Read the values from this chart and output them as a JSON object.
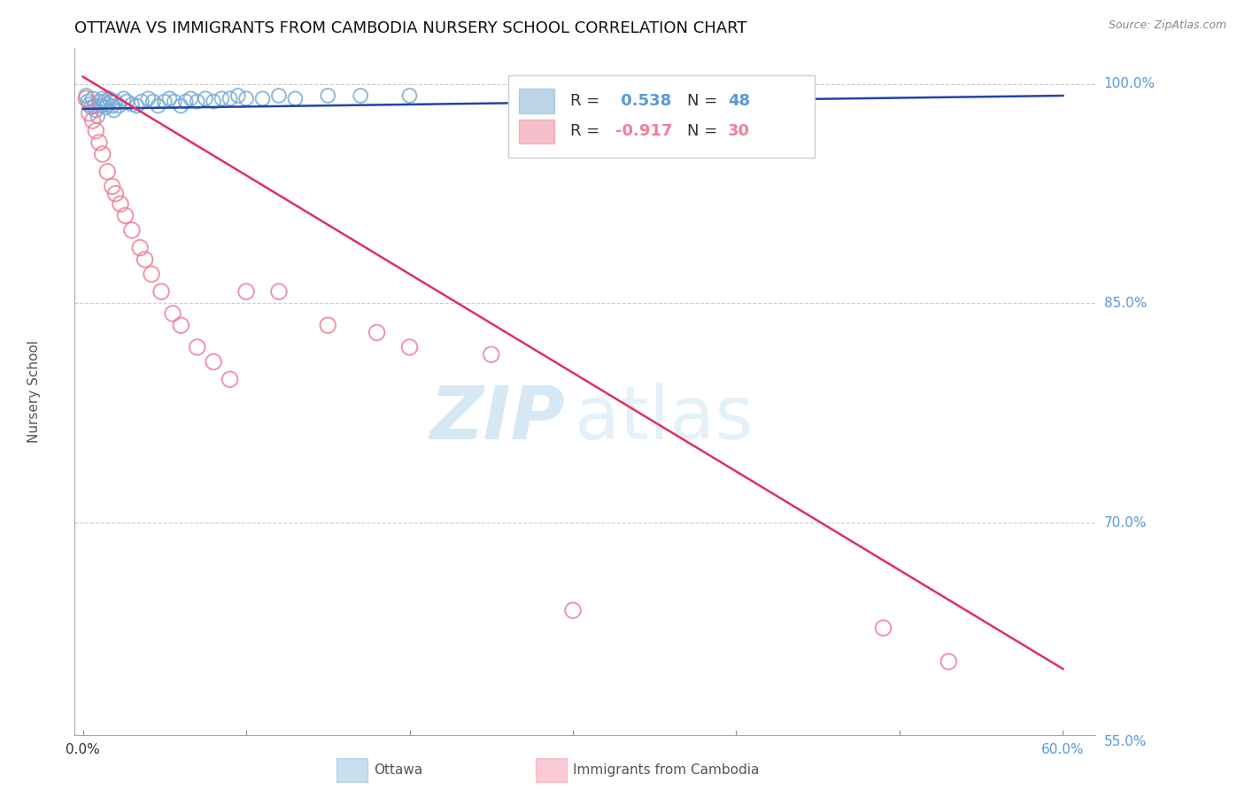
{
  "title": "OTTAWA VS IMMIGRANTS FROM CAMBODIA NURSERY SCHOOL CORRELATION CHART",
  "source": "Source: ZipAtlas.com",
  "ylabel": "Nursery School",
  "xlim": [
    -0.005,
    0.62
  ],
  "ylim": [
    0.555,
    1.025
  ],
  "yticks": [
    0.55,
    0.7,
    0.85,
    1.0
  ],
  "ytick_labels": [
    "55.0%",
    "70.0%",
    "85.0%",
    "100.0%"
  ],
  "ottawa_color": "#7aadd4",
  "cambodia_color": "#f08098",
  "trendline_ottawa_color": "#2244aa",
  "trendline_cambodia_color": "#e03060",
  "R_ottawa": 0.538,
  "N_ottawa": 48,
  "R_cambodia": -0.917,
  "N_cambodia": 30,
  "watermark_zip": "ZIP",
  "watermark_atlas": "atlas",
  "background_color": "#ffffff",
  "grid_color": "#cccccc",
  "title_fontsize": 13,
  "right_label_color": "#5599dd",
  "ottawa_x": [
    0.002,
    0.003,
    0.004,
    0.005,
    0.006,
    0.007,
    0.008,
    0.009,
    0.01,
    0.011,
    0.012,
    0.013,
    0.014,
    0.015,
    0.016,
    0.017,
    0.018,
    0.019,
    0.02,
    0.022,
    0.025,
    0.027,
    0.03,
    0.033,
    0.036,
    0.04,
    0.043,
    0.046,
    0.05,
    0.053,
    0.056,
    0.06,
    0.063,
    0.066,
    0.07,
    0.075,
    0.08,
    0.085,
    0.09,
    0.095,
    0.1,
    0.11,
    0.12,
    0.13,
    0.15,
    0.17,
    0.2,
    0.36
  ],
  "ottawa_y": [
    0.992,
    0.988,
    0.986,
    0.984,
    0.99,
    0.985,
    0.982,
    0.978,
    0.988,
    0.985,
    0.99,
    0.988,
    0.984,
    0.986,
    0.99,
    0.988,
    0.985,
    0.982,
    0.988,
    0.985,
    0.99,
    0.988,
    0.986,
    0.985,
    0.988,
    0.99,
    0.988,
    0.985,
    0.988,
    0.99,
    0.988,
    0.985,
    0.988,
    0.99,
    0.988,
    0.99,
    0.988,
    0.99,
    0.99,
    0.992,
    0.99,
    0.99,
    0.992,
    0.99,
    0.992,
    0.992,
    0.992,
    0.992
  ],
  "cambodia_x": [
    0.002,
    0.004,
    0.006,
    0.008,
    0.01,
    0.012,
    0.015,
    0.018,
    0.02,
    0.023,
    0.026,
    0.03,
    0.035,
    0.038,
    0.042,
    0.048,
    0.055,
    0.06,
    0.07,
    0.08,
    0.09,
    0.1,
    0.12,
    0.15,
    0.18,
    0.2,
    0.25,
    0.3,
    0.49,
    0.53
  ],
  "cambodia_y": [
    0.99,
    0.98,
    0.975,
    0.968,
    0.96,
    0.952,
    0.94,
    0.93,
    0.925,
    0.918,
    0.91,
    0.9,
    0.888,
    0.88,
    0.87,
    0.858,
    0.843,
    0.835,
    0.82,
    0.81,
    0.798,
    0.858,
    0.858,
    0.835,
    0.83,
    0.82,
    0.815,
    0.64,
    0.628,
    0.605
  ],
  "trendline_cambodia_x0": 0.0,
  "trendline_cambodia_y0": 1.005,
  "trendline_cambodia_x1": 0.6,
  "trendline_cambodia_y1": 0.6,
  "trendline_ottawa_x0": 0.0,
  "trendline_ottawa_y0": 0.983,
  "trendline_ottawa_x1": 0.6,
  "trendline_ottawa_y1": 0.992
}
